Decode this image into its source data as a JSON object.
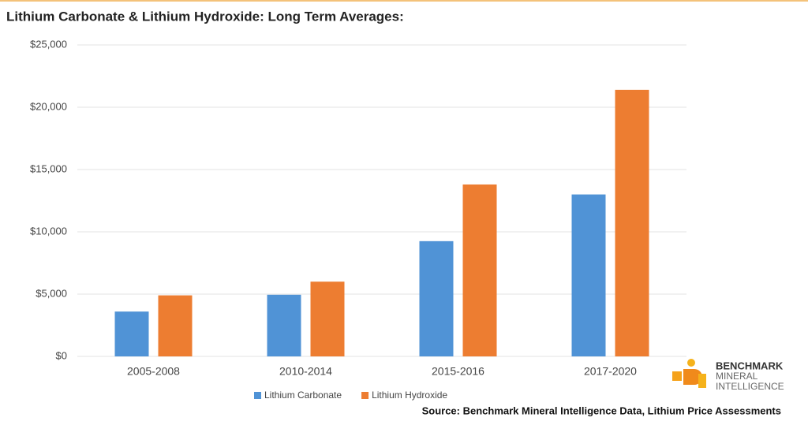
{
  "chart_data": {
    "type": "bar",
    "title": "Lithium Carbonate & Lithium Hydroxide: Long Term Averages:",
    "categories": [
      "2005-2008",
      "2010-2014",
      "2015-2016",
      "2017-2020"
    ],
    "series": [
      {
        "name": "Lithium Carbonate",
        "color": "#5093d6",
        "values": [
          3600,
          4950,
          9250,
          13000
        ]
      },
      {
        "name": "Lithium Hydroxide",
        "color": "#ed7d31",
        "values": [
          4900,
          6000,
          13800,
          21400
        ]
      }
    ],
    "ylim": [
      0,
      25000
    ],
    "yticks": [
      {
        "value": 0,
        "label": "$0"
      },
      {
        "value": 5000,
        "label": "$5,000"
      },
      {
        "value": 10000,
        "label": "$10,000"
      },
      {
        "value": 15000,
        "label": "$15,000"
      },
      {
        "value": 20000,
        "label": "$20,000"
      },
      {
        "value": 25000,
        "label": "$25,000"
      }
    ],
    "grid": true,
    "legend": "bottom",
    "source": "Source: Benchmark Mineral Intelligence Data, Lithium Price Assessments"
  },
  "logo": {
    "line1": "BENCHMARK",
    "line2": "MINERAL",
    "line3": "INTELLIGENCE"
  }
}
